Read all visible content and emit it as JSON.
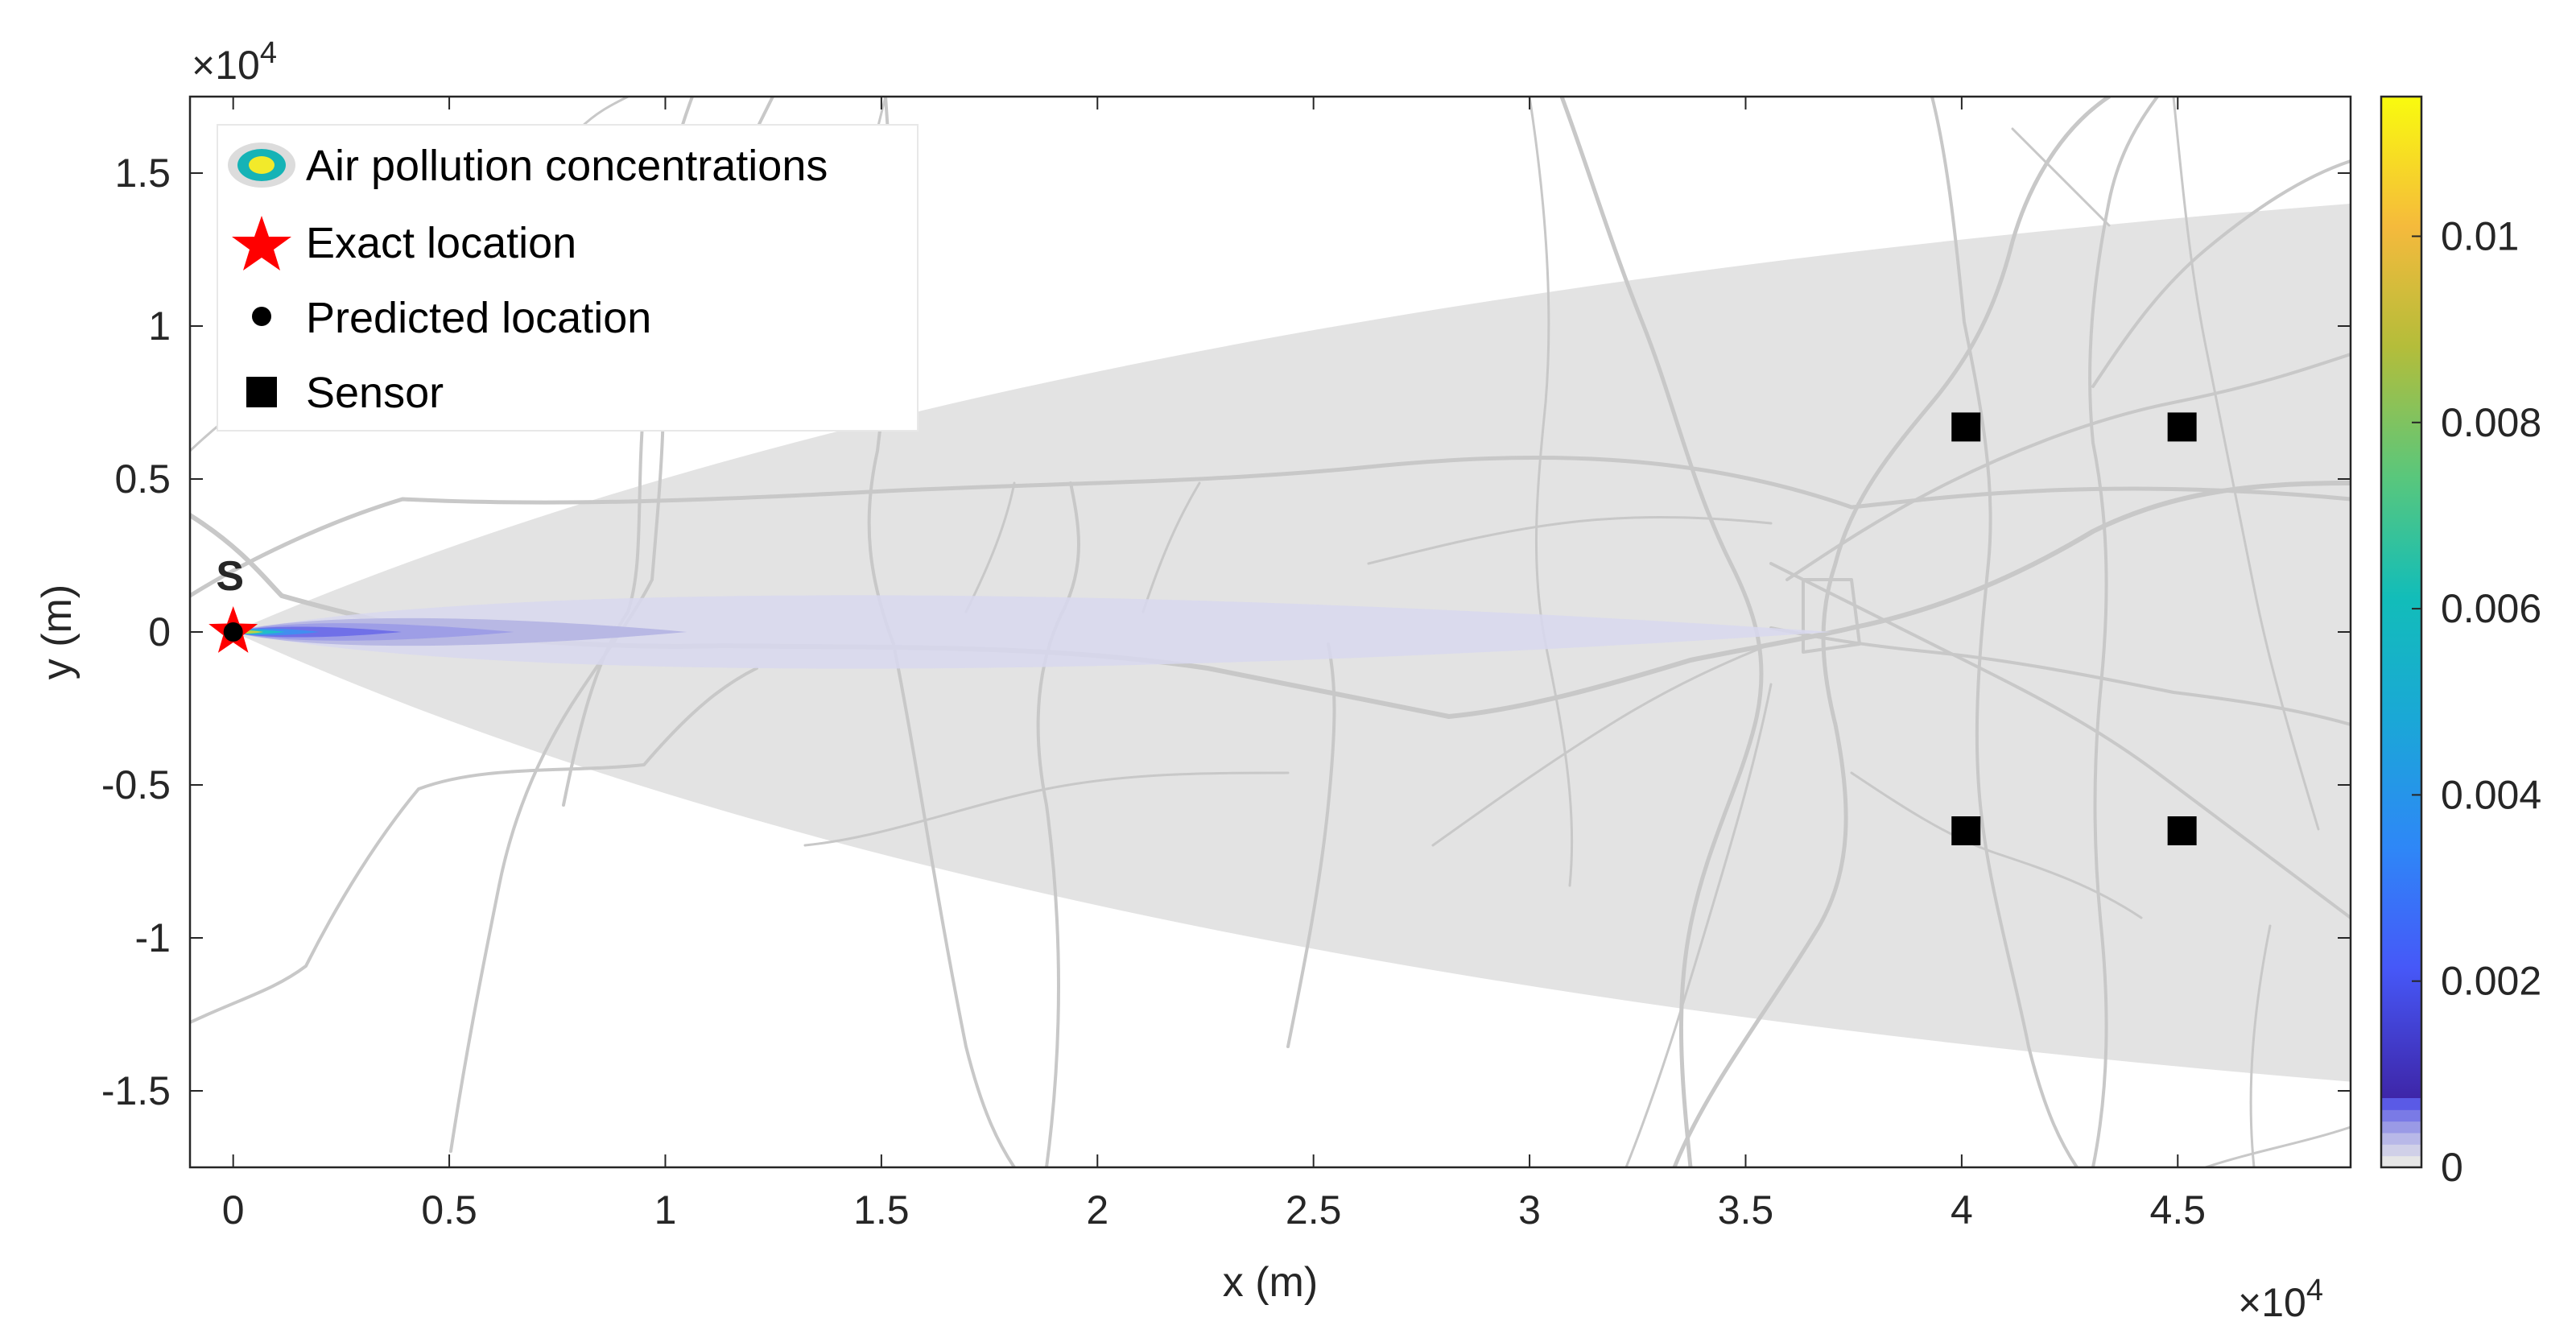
{
  "chart_data": {
    "type": "contour",
    "xlabel": "x (m)",
    "ylabel": "y (m)",
    "x_exponent_label": "×10",
    "x_exponent_power": "4",
    "y_exponent_label": "×10",
    "y_exponent_power": "4",
    "xlim": [
      -1000,
      49000
    ],
    "ylim": [
      -17500,
      17500
    ],
    "x_ticks": [
      0,
      5000,
      10000,
      15000,
      20000,
      25000,
      30000,
      35000,
      40000,
      45000
    ],
    "x_tick_labels": [
      "0",
      "0.5",
      "1",
      "1.5",
      "2",
      "2.5",
      "3",
      "3.5",
      "4",
      "4.5"
    ],
    "y_ticks": [
      -15000,
      -10000,
      -5000,
      0,
      5000,
      10000,
      15000
    ],
    "y_tick_labels": [
      "-1.5",
      "-1",
      "-0.5",
      "0",
      "0.5",
      "1",
      "1.5"
    ],
    "colorbar": {
      "min": 0,
      "max": 0.0115,
      "ticks": [
        0,
        0.002,
        0.004,
        0.006,
        0.008,
        0.01
      ],
      "tick_labels": [
        "0",
        "0.002",
        "0.004",
        "0.006",
        "0.008",
        "0.01"
      ],
      "colormap": "parula",
      "low_band_colors": [
        "#e6e6e6",
        "#d0d0e8",
        "#b8b8e8",
        "#9a9ae6",
        "#7a7ae6",
        "#5a5ae6"
      ]
    },
    "plume": {
      "source": [
        0,
        0
      ],
      "spread_at_x": [
        [
          0,
          0
        ],
        [
          49000,
          14000
        ],
        [
          49000,
          -14700
        ]
      ],
      "fill_color": "#e3e3e3",
      "contours": [
        {
          "x_end": 37000,
          "half_width": 1600,
          "color": "#d8d8ef"
        },
        {
          "x_end": 10500,
          "half_width": 600,
          "color": "#b6b6e4"
        },
        {
          "x_end": 6500,
          "half_width": 380,
          "color": "#9c9ce6"
        },
        {
          "x_end": 3900,
          "half_width": 230,
          "color": "#6e6ee8"
        },
        {
          "x_end": 2000,
          "half_width": 150,
          "color": "#3f8ef0"
        },
        {
          "x_end": 1200,
          "half_width": 100,
          "color": "#1fc0c8"
        },
        {
          "x_end": 700,
          "half_width": 70,
          "color": "#c8d23a"
        },
        {
          "x_end": 350,
          "half_width": 45,
          "color": "#f8e71c"
        }
      ]
    },
    "source_label": "S",
    "exact_location": [
      0,
      0
    ],
    "predicted_location": [
      0,
      0
    ],
    "sensors": [
      [
        40100,
        6700
      ],
      [
        45100,
        6700
      ],
      [
        40100,
        -6500
      ],
      [
        45100,
        -6500
      ]
    ],
    "legend": {
      "position": "top-left",
      "entries": [
        {
          "label": "Air pollution concentrations",
          "marker": "contour-icon"
        },
        {
          "label": "Exact location",
          "marker": "red-star-icon",
          "color": "#ff0000"
        },
        {
          "label": "Predicted location",
          "marker": "black-dot-icon",
          "color": "#000000"
        },
        {
          "label": "Sensor",
          "marker": "black-square-icon",
          "color": "#000000"
        }
      ]
    },
    "background": "road-network map (gray lines)"
  }
}
